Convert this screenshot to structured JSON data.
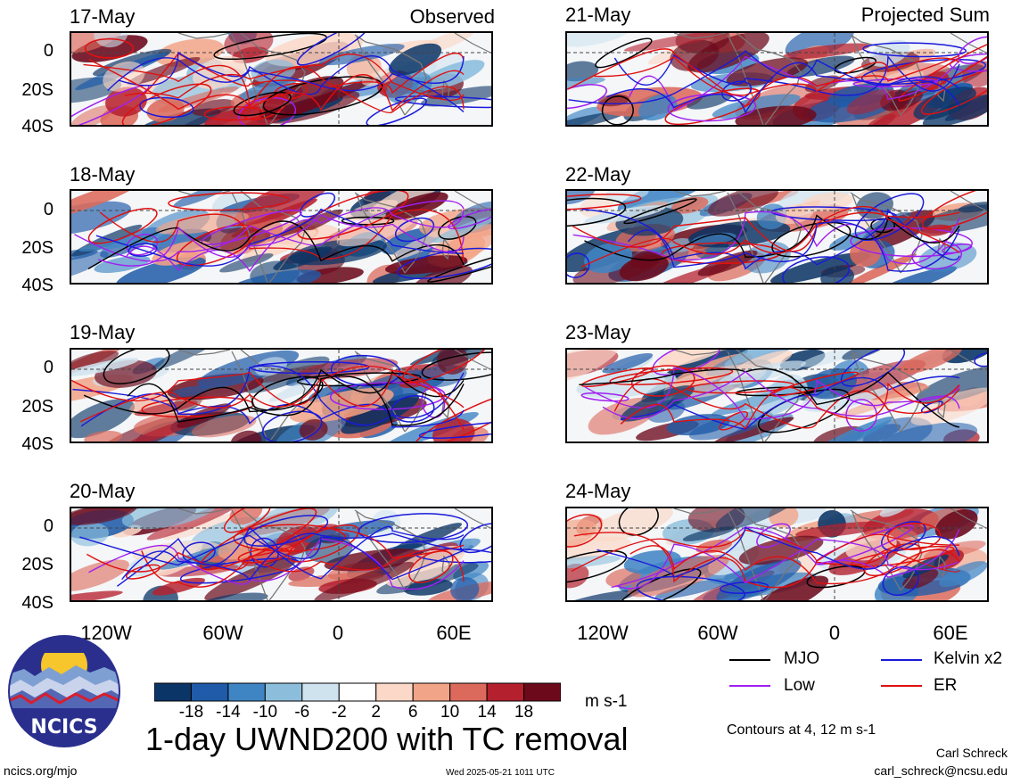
{
  "left_column": {
    "tag": "Observed",
    "panels": [
      {
        "date": "17-May"
      },
      {
        "date": "18-May"
      },
      {
        "date": "19-May"
      },
      {
        "date": "20-May"
      }
    ]
  },
  "right_column": {
    "tag": "Projected Sum",
    "panels": [
      {
        "date": "21-May"
      },
      {
        "date": "22-May"
      },
      {
        "date": "23-May"
      },
      {
        "date": "24-May"
      }
    ]
  },
  "y_ticks": [
    "0",
    "20S",
    "40S"
  ],
  "x_ticks": [
    "120W",
    "60W",
    "0",
    "60E"
  ],
  "legend": {
    "items": [
      {
        "label": "MJO",
        "color": "#000000"
      },
      {
        "label": "Kelvin x2",
        "color": "#1a1adb"
      },
      {
        "label": "Low",
        "color": "#a020f0"
      },
      {
        "label": "ER",
        "color": "#e01010"
      }
    ],
    "note": "Contours at 4, 12 m s-1"
  },
  "colorbar": {
    "colors": [
      "#0b3566",
      "#1f5ba8",
      "#3f85c4",
      "#8cbedc",
      "#cfe3ef",
      "#ffffff",
      "#fbd8c7",
      "#f2a488",
      "#dc6a5c",
      "#b5202e",
      "#6c0a1c"
    ],
    "tick_labels": [
      "-18",
      "-14",
      "-10",
      "-6",
      "-2",
      "2",
      "6",
      "10",
      "14",
      "18"
    ],
    "units": "m s-1"
  },
  "title": "1-day UWND200 with TC removal",
  "logo": {
    "text": "NCICS"
  },
  "footer": {
    "url": "ncics.org/mjo",
    "timestamp": "Wed 2025-05-21 1011 UTC",
    "author": "Carl Schreck",
    "email": "carl_schreck@ncsu.edu"
  }
}
